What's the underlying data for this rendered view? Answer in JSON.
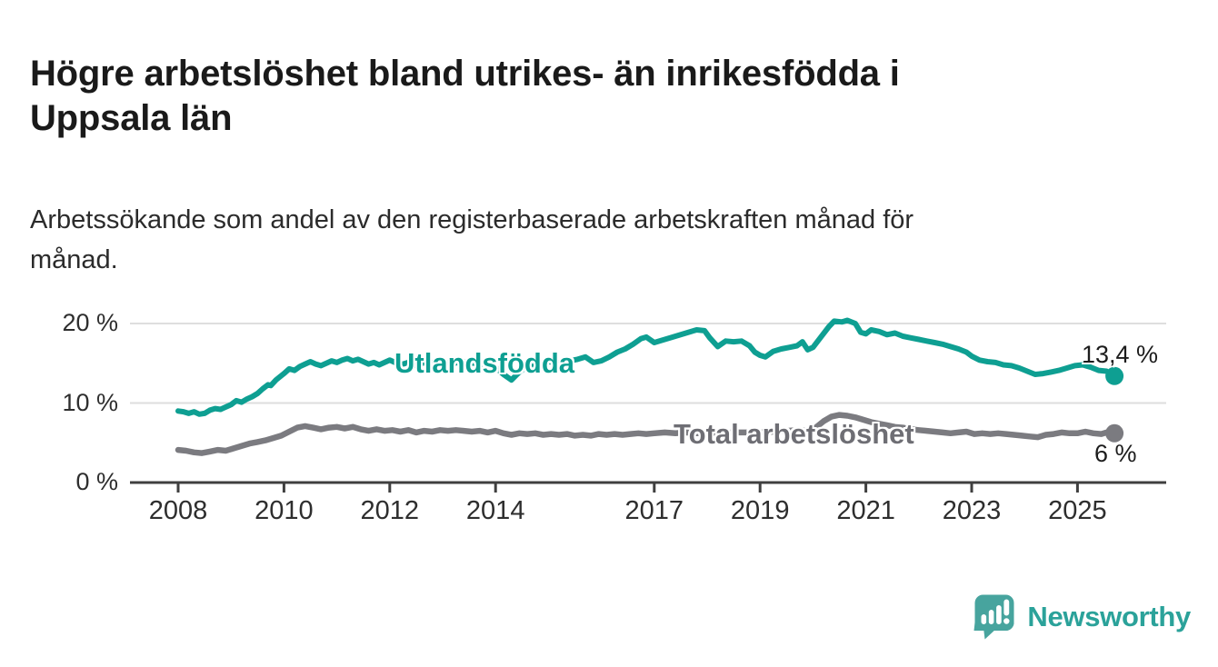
{
  "header": {
    "title": "Högre arbetslöshet bland utrikes- än inrikesfödda i\nUppsala län",
    "subtitle": "Arbetssökande som andel av den registerbaserade arbetskraften månad för\nmånad."
  },
  "footer": {
    "brand": "Newsworthy"
  },
  "colors": {
    "accent_teal": "#0e9f92",
    "line_gray": "#7b7b80",
    "series_label_gray": "#6e6e74",
    "logo_teal": "#47a49e",
    "grid": "#dedede",
    "axis": "#3f3f3f",
    "text": "#1a1a1a"
  },
  "chart_data": {
    "type": "line",
    "title": "Högre arbetslöshet bland utrikes- än inrikesfödda i Uppsala län",
    "subtitle": "Arbetssökande som andel av den registerbaserade arbetskraften månad för månad.",
    "xlabel": "",
    "ylabel": "",
    "unit": "%",
    "xlim": [
      2007.1,
      2026.7
    ],
    "ylim": [
      0,
      21.8
    ],
    "grid": "horizontal-only",
    "legend": "labels-on-chart",
    "x_ticks": [
      {
        "year": 2008,
        "label": "2008"
      },
      {
        "year": 2010,
        "label": "2010"
      },
      {
        "year": 2012,
        "label": "2012"
      },
      {
        "year": 2014,
        "label": "2014"
      },
      {
        "year": 2017,
        "label": "2017"
      },
      {
        "year": 2019,
        "label": "2019"
      },
      {
        "year": 2021,
        "label": "2021"
      },
      {
        "year": 2023,
        "label": "2023"
      },
      {
        "year": 2025,
        "label": "2025"
      }
    ],
    "y_ticks": [
      {
        "value": 0,
        "label": "0 %"
      },
      {
        "value": 10,
        "label": "10 %"
      },
      {
        "value": 20,
        "label": "20 %"
      }
    ],
    "series": [
      {
        "name": "Utlandsfödda",
        "color": "#0e9f92",
        "line_width": 6,
        "end_value": 13.4,
        "end_label": "13,4 %",
        "points": [
          [
            2008.0,
            9.0
          ],
          [
            2008.1,
            8.9
          ],
          [
            2008.2,
            8.7
          ],
          [
            2008.3,
            8.9
          ],
          [
            2008.4,
            8.6
          ],
          [
            2008.5,
            8.7
          ],
          [
            2008.6,
            9.1
          ],
          [
            2008.7,
            9.3
          ],
          [
            2008.8,
            9.2
          ],
          [
            2008.9,
            9.5
          ],
          [
            2009.0,
            9.8
          ],
          [
            2009.1,
            10.3
          ],
          [
            2009.2,
            10.1
          ],
          [
            2009.3,
            10.5
          ],
          [
            2009.4,
            10.8
          ],
          [
            2009.5,
            11.2
          ],
          [
            2009.6,
            11.8
          ],
          [
            2009.7,
            12.3
          ],
          [
            2009.75,
            12.2
          ],
          [
            2009.85,
            12.9
          ],
          [
            2010.0,
            13.7
          ],
          [
            2010.1,
            14.3
          ],
          [
            2010.2,
            14.1
          ],
          [
            2010.3,
            14.6
          ],
          [
            2010.4,
            14.9
          ],
          [
            2010.5,
            15.2
          ],
          [
            2010.6,
            14.9
          ],
          [
            2010.7,
            14.7
          ],
          [
            2010.8,
            15.0
          ],
          [
            2010.9,
            15.3
          ],
          [
            2011.0,
            15.1
          ],
          [
            2011.1,
            15.4
          ],
          [
            2011.2,
            15.6
          ],
          [
            2011.3,
            15.3
          ],
          [
            2011.4,
            15.5
          ],
          [
            2011.5,
            15.2
          ],
          [
            2011.6,
            14.9
          ],
          [
            2011.7,
            15.1
          ],
          [
            2011.8,
            14.8
          ],
          [
            2011.9,
            15.1
          ],
          [
            2012.0,
            15.4
          ],
          [
            2012.1,
            15.1
          ],
          [
            2012.2,
            14.8
          ],
          [
            2012.35,
            15.1
          ],
          [
            2012.5,
            14.7
          ],
          [
            2012.6,
            15.0
          ],
          [
            2012.75,
            15.2
          ],
          [
            2012.9,
            14.9
          ],
          [
            2013.0,
            15.1
          ],
          [
            2013.2,
            15.0
          ],
          [
            2013.4,
            15.2
          ],
          [
            2013.6,
            15.0
          ],
          [
            2013.8,
            14.9
          ],
          [
            2014.0,
            14.5
          ],
          [
            2014.15,
            13.6
          ],
          [
            2014.3,
            12.9
          ],
          [
            2014.45,
            13.9
          ],
          [
            2014.6,
            14.6
          ],
          [
            2014.8,
            15.0
          ],
          [
            2015.0,
            15.2
          ],
          [
            2015.2,
            15.1
          ],
          [
            2015.4,
            15.3
          ],
          [
            2015.55,
            15.5
          ],
          [
            2015.7,
            15.8
          ],
          [
            2015.85,
            15.1
          ],
          [
            2016.0,
            15.3
          ],
          [
            2016.15,
            15.8
          ],
          [
            2016.3,
            16.4
          ],
          [
            2016.45,
            16.8
          ],
          [
            2016.6,
            17.4
          ],
          [
            2016.75,
            18.1
          ],
          [
            2016.85,
            18.3
          ],
          [
            2017.0,
            17.6
          ],
          [
            2017.15,
            17.9
          ],
          [
            2017.3,
            18.2
          ],
          [
            2017.5,
            18.6
          ],
          [
            2017.65,
            18.9
          ],
          [
            2017.8,
            19.2
          ],
          [
            2017.95,
            19.1
          ],
          [
            2018.05,
            18.2
          ],
          [
            2018.2,
            17.1
          ],
          [
            2018.35,
            17.8
          ],
          [
            2018.5,
            17.7
          ],
          [
            2018.65,
            17.8
          ],
          [
            2018.8,
            17.2
          ],
          [
            2018.9,
            16.4
          ],
          [
            2019.0,
            16.0
          ],
          [
            2019.1,
            15.8
          ],
          [
            2019.25,
            16.5
          ],
          [
            2019.4,
            16.8
          ],
          [
            2019.55,
            17.0
          ],
          [
            2019.7,
            17.2
          ],
          [
            2019.8,
            17.7
          ],
          [
            2019.9,
            16.7
          ],
          [
            2020.0,
            17.0
          ],
          [
            2020.15,
            18.3
          ],
          [
            2020.3,
            19.6
          ],
          [
            2020.4,
            20.3
          ],
          [
            2020.55,
            20.2
          ],
          [
            2020.65,
            20.4
          ],
          [
            2020.8,
            20.0
          ],
          [
            2020.9,
            18.9
          ],
          [
            2021.0,
            18.7
          ],
          [
            2021.1,
            19.2
          ],
          [
            2021.25,
            19.0
          ],
          [
            2021.4,
            18.6
          ],
          [
            2021.55,
            18.8
          ],
          [
            2021.7,
            18.4
          ],
          [
            2021.85,
            18.2
          ],
          [
            2022.0,
            18.0
          ],
          [
            2022.15,
            17.8
          ],
          [
            2022.3,
            17.6
          ],
          [
            2022.45,
            17.4
          ],
          [
            2022.6,
            17.1
          ],
          [
            2022.75,
            16.8
          ],
          [
            2022.9,
            16.4
          ],
          [
            2023.0,
            15.9
          ],
          [
            2023.15,
            15.4
          ],
          [
            2023.3,
            15.2
          ],
          [
            2023.45,
            15.1
          ],
          [
            2023.6,
            14.8
          ],
          [
            2023.75,
            14.7
          ],
          [
            2023.9,
            14.4
          ],
          [
            2024.05,
            14.0
          ],
          [
            2024.2,
            13.6
          ],
          [
            2024.35,
            13.7
          ],
          [
            2024.5,
            13.9
          ],
          [
            2024.65,
            14.1
          ],
          [
            2024.8,
            14.4
          ],
          [
            2024.95,
            14.7
          ],
          [
            2025.1,
            14.8
          ],
          [
            2025.25,
            14.5
          ],
          [
            2025.4,
            14.1
          ],
          [
            2025.55,
            14.0
          ],
          [
            2025.7,
            13.4
          ]
        ]
      },
      {
        "name": "Total arbetslöshet",
        "color": "#7b7b80",
        "line_width": 6.5,
        "end_value": 6,
        "end_label": "6 %",
        "points": [
          [
            2008.0,
            4.1
          ],
          [
            2008.15,
            4.0
          ],
          [
            2008.3,
            3.8
          ],
          [
            2008.45,
            3.7
          ],
          [
            2008.6,
            3.9
          ],
          [
            2008.75,
            4.1
          ],
          [
            2008.9,
            4.0
          ],
          [
            2009.05,
            4.3
          ],
          [
            2009.2,
            4.6
          ],
          [
            2009.35,
            4.9
          ],
          [
            2009.5,
            5.1
          ],
          [
            2009.65,
            5.3
          ],
          [
            2009.8,
            5.6
          ],
          [
            2009.95,
            5.9
          ],
          [
            2010.1,
            6.4
          ],
          [
            2010.25,
            6.9
          ],
          [
            2010.4,
            7.1
          ],
          [
            2010.55,
            6.9
          ],
          [
            2010.7,
            6.7
          ],
          [
            2010.85,
            6.9
          ],
          [
            2011.0,
            7.0
          ],
          [
            2011.15,
            6.8
          ],
          [
            2011.3,
            7.0
          ],
          [
            2011.45,
            6.7
          ],
          [
            2011.6,
            6.5
          ],
          [
            2011.75,
            6.7
          ],
          [
            2011.9,
            6.5
          ],
          [
            2012.05,
            6.6
          ],
          [
            2012.2,
            6.4
          ],
          [
            2012.35,
            6.6
          ],
          [
            2012.5,
            6.3
          ],
          [
            2012.65,
            6.5
          ],
          [
            2012.8,
            6.4
          ],
          [
            2012.95,
            6.6
          ],
          [
            2013.1,
            6.5
          ],
          [
            2013.25,
            6.6
          ],
          [
            2013.4,
            6.5
          ],
          [
            2013.55,
            6.4
          ],
          [
            2013.7,
            6.5
          ],
          [
            2013.85,
            6.3
          ],
          [
            2014.0,
            6.5
          ],
          [
            2014.15,
            6.2
          ],
          [
            2014.3,
            6.0
          ],
          [
            2014.45,
            6.2
          ],
          [
            2014.6,
            6.1
          ],
          [
            2014.75,
            6.2
          ],
          [
            2014.9,
            6.0
          ],
          [
            2015.05,
            6.1
          ],
          [
            2015.2,
            6.0
          ],
          [
            2015.35,
            6.1
          ],
          [
            2015.5,
            5.9
          ],
          [
            2015.65,
            6.0
          ],
          [
            2015.8,
            5.9
          ],
          [
            2015.95,
            6.1
          ],
          [
            2016.1,
            6.0
          ],
          [
            2016.25,
            6.1
          ],
          [
            2016.4,
            6.0
          ],
          [
            2016.55,
            6.1
          ],
          [
            2016.7,
            6.2
          ],
          [
            2016.85,
            6.1
          ],
          [
            2017.0,
            6.2
          ],
          [
            2017.2,
            6.3
          ],
          [
            2017.4,
            6.2
          ],
          [
            2017.6,
            6.3
          ],
          [
            2017.8,
            6.2
          ],
          [
            2018.0,
            6.3
          ],
          [
            2018.25,
            6.2
          ],
          [
            2018.5,
            6.3
          ],
          [
            2018.75,
            6.3
          ],
          [
            2019.0,
            6.3
          ],
          [
            2019.25,
            6.4
          ],
          [
            2019.5,
            6.5
          ],
          [
            2019.75,
            6.6
          ],
          [
            2019.9,
            6.5
          ],
          [
            2020.05,
            6.9
          ],
          [
            2020.2,
            7.7
          ],
          [
            2020.35,
            8.3
          ],
          [
            2020.5,
            8.5
          ],
          [
            2020.65,
            8.4
          ],
          [
            2020.8,
            8.2
          ],
          [
            2020.95,
            7.9
          ],
          [
            2021.1,
            7.6
          ],
          [
            2021.25,
            7.4
          ],
          [
            2021.4,
            7.2
          ],
          [
            2021.55,
            7.0
          ],
          [
            2021.7,
            6.9
          ],
          [
            2021.85,
            6.7
          ],
          [
            2022.0,
            6.6
          ],
          [
            2022.15,
            6.5
          ],
          [
            2022.3,
            6.4
          ],
          [
            2022.45,
            6.3
          ],
          [
            2022.6,
            6.2
          ],
          [
            2022.75,
            6.3
          ],
          [
            2022.9,
            6.4
          ],
          [
            2023.05,
            6.1
          ],
          [
            2023.2,
            6.2
          ],
          [
            2023.35,
            6.1
          ],
          [
            2023.5,
            6.2
          ],
          [
            2023.65,
            6.1
          ],
          [
            2023.8,
            6.0
          ],
          [
            2023.95,
            5.9
          ],
          [
            2024.1,
            5.8
          ],
          [
            2024.25,
            5.7
          ],
          [
            2024.4,
            6.0
          ],
          [
            2024.55,
            6.1
          ],
          [
            2024.7,
            6.3
          ],
          [
            2024.85,
            6.2
          ],
          [
            2025.0,
            6.2
          ],
          [
            2025.15,
            6.4
          ],
          [
            2025.3,
            6.2
          ],
          [
            2025.45,
            6.1
          ],
          [
            2025.55,
            6.3
          ],
          [
            2025.7,
            6.2
          ]
        ]
      }
    ]
  }
}
